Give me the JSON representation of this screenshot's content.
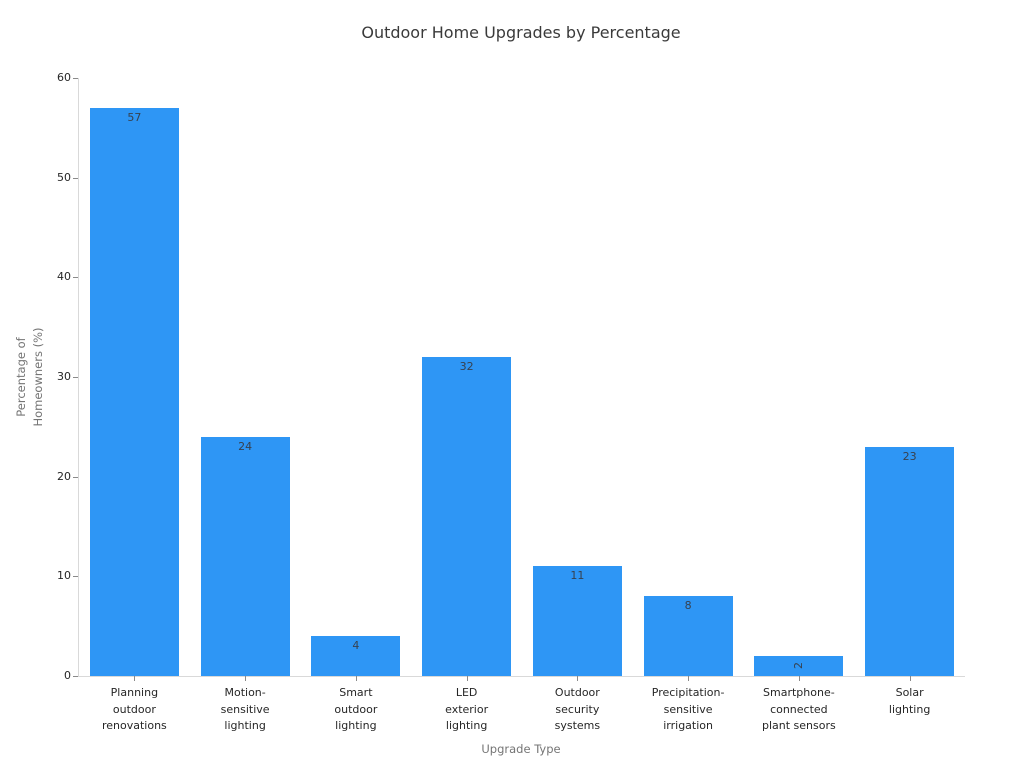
{
  "chart_data": {
    "type": "bar",
    "title": "Outdoor Home Upgrades by Percentage",
    "xlabel": "Upgrade Type",
    "ylabel": "Percentage of\nHomeowners (%)",
    "categories": [
      "Planning\noutdoor\nrenovations",
      "Motion-\nsensitive\nlighting",
      "Smart\noutdoor\nlighting",
      "LED\nexterior\nlighting",
      "Outdoor\nsecurity\nsystems",
      "Precipitation-\nsensitive\nirrigation",
      "Smartphone-\nconnected\nplant sensors",
      "Solar\nlighting"
    ],
    "values": [
      57,
      24,
      4,
      32,
      11,
      8,
      2,
      23
    ],
    "yticks": [
      0,
      10,
      20,
      30,
      40,
      50,
      60
    ],
    "ylim": [
      0,
      60
    ],
    "grid": false,
    "legend": "none",
    "bar_color": "#2e96f5",
    "colors": {
      "title": "#3a3a3a",
      "axis_label": "#757575",
      "tick_label": "#262626",
      "value_label": "#37414f",
      "spine": "#d9d9d9",
      "tick_mark": "#8a8a8a",
      "background": "#ffffff"
    }
  }
}
